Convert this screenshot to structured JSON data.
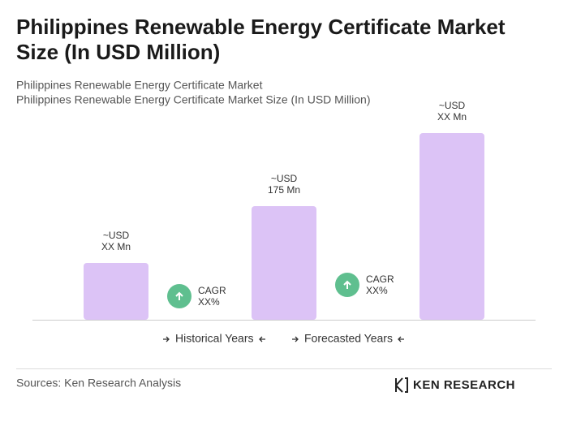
{
  "chart_data": {
    "type": "bar",
    "title": "Philippines Renewable Energy Certificate Market Size (In USD Million)",
    "subtitle": [
      "Philippines Renewable Energy Certificate Market",
      "Philippines Renewable Energy Certificate Market Size (In USD Million)"
    ],
    "categories": [
      null,
      null,
      null
    ],
    "values": [
      87.5,
      175,
      287.5
    ],
    "value_labels": [
      [
        "~USD",
        "XX Mn"
      ],
      [
        "~USD",
        "175 Mn"
      ],
      [
        "~USD",
        "XX Mn"
      ]
    ],
    "color": "#dcc3f6",
    "annotations": [
      [
        "CAGR",
        "XX%"
      ],
      [
        "CAGR",
        "XX%"
      ]
    ],
    "legend_items": [
      "Historical Years",
      "Forecasted Years"
    ],
    "source": "Sources: Ken Research Analysis",
    "brand": "KEN RESEARCH"
  }
}
